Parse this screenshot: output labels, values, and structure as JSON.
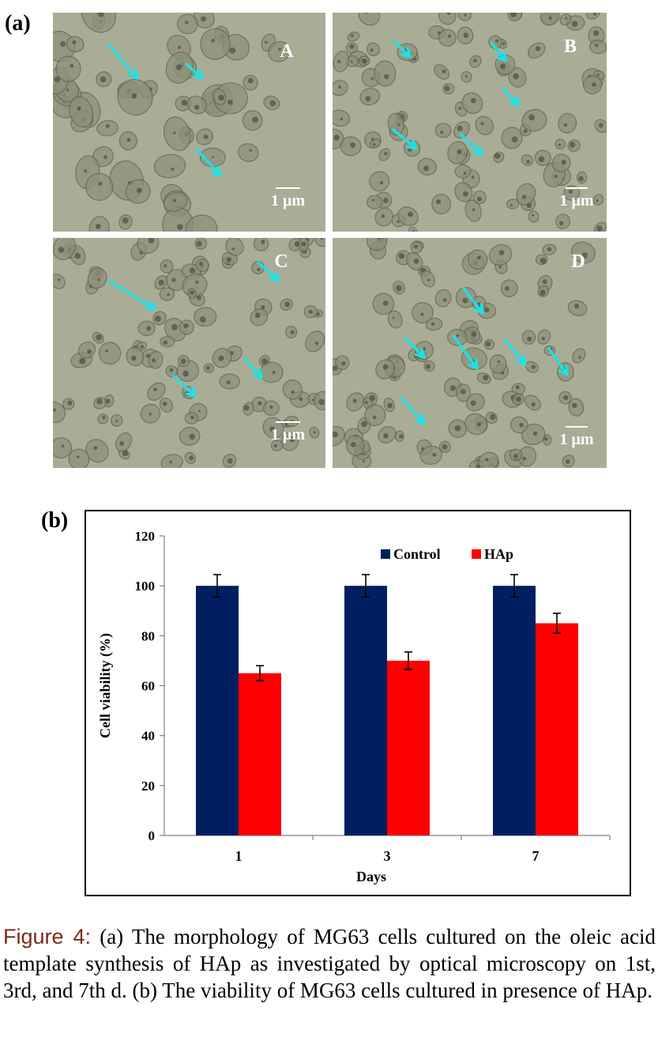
{
  "figure": {
    "panel_a_label": "(a)",
    "panel_b_label": "(b)",
    "micrographs": [
      {
        "letter": "A",
        "scale_label": "1 μm"
      },
      {
        "letter": "B",
        "scale_label": "1 μm"
      },
      {
        "letter": "C",
        "scale_label": "1 μm"
      },
      {
        "letter": "D",
        "scale_label": "1 μm"
      }
    ],
    "colors": {
      "micrograph_bg": "#a9ad96",
      "cell_fill": "#8d917a",
      "cell_edge": "#5c6050",
      "arrow": "#19e3ea"
    }
  },
  "chart_data": {
    "type": "bar",
    "categories": [
      "1",
      "3",
      "7"
    ],
    "series": [
      {
        "name": "Control",
        "values": [
          100,
          100,
          100
        ],
        "errors": [
          4.5,
          4.5,
          4.5
        ],
        "color": "#001f60"
      },
      {
        "name": "HAp",
        "values": [
          65,
          70,
          85
        ],
        "errors": [
          3,
          3.5,
          4
        ],
        "color": "#ff0000"
      }
    ],
    "xlabel": "Days",
    "ylabel": "Cell viability (%)",
    "ylim": [
      0,
      120
    ],
    "yticks": [
      "0",
      "20",
      "40",
      "60",
      "80",
      "100",
      "120"
    ],
    "grid": false,
    "legend_position": "top-right"
  },
  "caption": {
    "label": "Figure 4:",
    "text": " (a) The morphology of MG63 cells cultured on the oleic acid template synthesis of HAp as investigated by optical microscopy on 1st, 3rd, and 7th d. (b) The viability of MG63 cells cultured in presence of HAp."
  }
}
